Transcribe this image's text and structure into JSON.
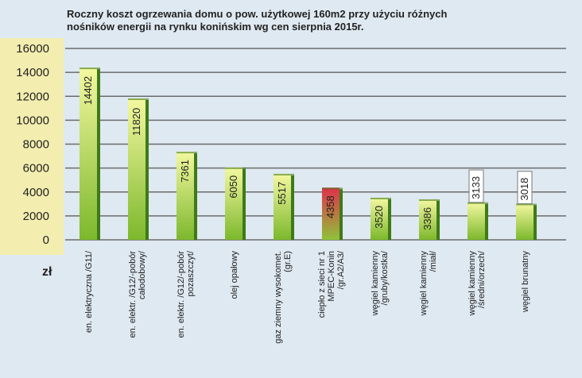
{
  "chart_data": {
    "type": "bar",
    "title_lines": [
      "Roczny koszt ogrzewania domu o pow. użytkowej 160m2 przy użyciu różnych",
      "nośników energii na rynku konińskim wg cen sierpnia 2015r."
    ],
    "ylabel": "zł",
    "ylim": [
      0,
      16000
    ],
    "yticks": [
      0,
      2000,
      4000,
      6000,
      8000,
      10000,
      12000,
      14000,
      16000
    ],
    "grid": true,
    "categories": [
      [
        "en. elektryczna /G11/"
      ],
      [
        "en. elektr. /G12/-pobór",
        "całodobowy/"
      ],
      [
        "en. elektr. /G12/-pobór",
        "pozaszczyt/"
      ],
      [
        "olej opałowy"
      ],
      [
        "gaz ziemny wysokomet.",
        "(gr.E)"
      ],
      [
        "ciepło z sieci nr 1",
        "MPEC-Konin",
        "/gr.A2/A3/"
      ],
      [
        "węgiel kamienny",
        "/gruby/kostka/"
      ],
      [
        "węgiel kamienny",
        "/miał/"
      ],
      [
        "węgiel kamienny",
        "/średni/orzech/"
      ],
      [
        "węgiel brunatny"
      ]
    ],
    "values": [
      14402,
      11820,
      7361,
      6050,
      5517,
      4358,
      3520,
      3386,
      3133,
      3018
    ],
    "value_labels": [
      "14402",
      "11820",
      "7361",
      "6050",
      "5517",
      "4358",
      "3520",
      "3386",
      "3133",
      "3018"
    ],
    "colors": {
      "bar_top": "#f4f8a0",
      "bar_bottom": "#7cb82c",
      "bar_side": "#3f7a18",
      "highlight_top": "#e0314a",
      "highlight_bottom": "#8fc23a",
      "axis_band": "#f3eeaf",
      "grid": "#6b6b6b",
      "text": "#222222"
    },
    "highlight_index": 5,
    "boxed_label_indices": [
      8,
      9
    ]
  }
}
